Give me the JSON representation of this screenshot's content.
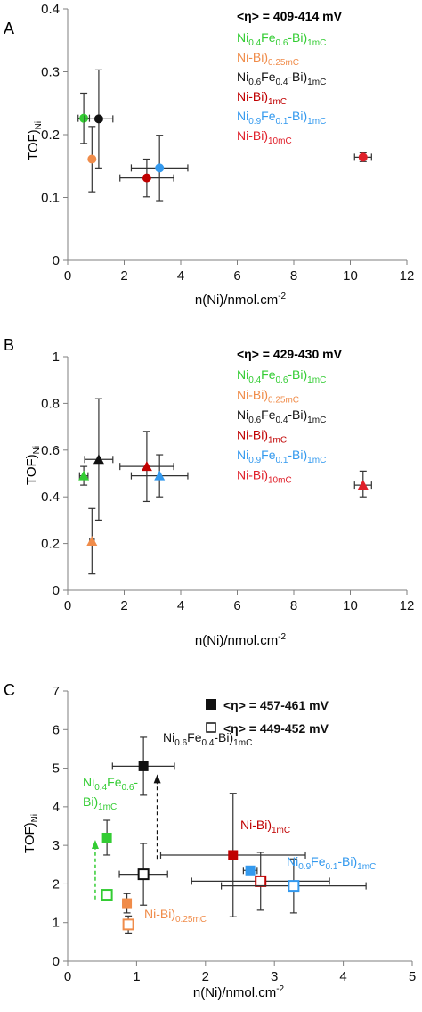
{
  "figure": {
    "panels": [
      {
        "letter": "A",
        "xlabel": "n(Ni)/nmol.cm",
        "xlabel_sup": "-2",
        "ylabel": "TOF)",
        "ylabel_sub": "Ni",
        "legend_title": "<η> = 409-414 mV",
        "legend_entries": [
          {
            "color": "#33cc33",
            "parts": [
              [
                "Ni",
                ""
              ],
              [
                "0.4",
                "sub"
              ],
              [
                "Fe",
                ""
              ],
              [
                "0.6",
                "sub"
              ],
              [
                "-Bi)",
                ""
              ],
              [
                "1mC",
                "sub"
              ]
            ]
          },
          {
            "color": "#f08c4a",
            "parts": [
              [
                "Ni-Bi)",
                ""
              ],
              [
                "0.25mC",
                "sub"
              ]
            ]
          },
          {
            "color": "#111111",
            "parts": [
              [
                "Ni",
                ""
              ],
              [
                "0.6",
                "sub"
              ],
              [
                "Fe",
                ""
              ],
              [
                "0.4",
                "sub"
              ],
              [
                "-Bi)",
                ""
              ],
              [
                "1mC",
                "sub"
              ]
            ]
          },
          {
            "color": "#c00000",
            "parts": [
              [
                "Ni-Bi)",
                ""
              ],
              [
                "1mC",
                "sub"
              ]
            ]
          },
          {
            "color": "#3399ee",
            "parts": [
              [
                "Ni",
                ""
              ],
              [
                "0.9",
                "sub"
              ],
              [
                "Fe",
                ""
              ],
              [
                "0.1",
                "sub"
              ],
              [
                "-Bi)",
                ""
              ],
              [
                "1mC",
                "sub"
              ]
            ]
          },
          {
            "color": "#e0202a",
            "parts": [
              [
                "Ni-Bi)",
                ""
              ],
              [
                "10mC",
                "sub"
              ]
            ]
          }
        ]
      },
      {
        "letter": "B",
        "xlabel": "n(Ni)/nmol.cm",
        "xlabel_sup": "-2",
        "ylabel": "TOF)",
        "ylabel_sub": "Ni",
        "legend_title": "<η> = 429-430 mV",
        "legend_entries": [
          {
            "color": "#33cc33",
            "parts": [
              [
                "Ni",
                ""
              ],
              [
                "0.4",
                "sub"
              ],
              [
                "Fe",
                ""
              ],
              [
                "0.6",
                "sub"
              ],
              [
                "-Bi)",
                ""
              ],
              [
                "1mC",
                "sub"
              ]
            ]
          },
          {
            "color": "#f08c4a",
            "parts": [
              [
                "Ni-Bi)",
                ""
              ],
              [
                "0.25mC",
                "sub"
              ]
            ]
          },
          {
            "color": "#111111",
            "parts": [
              [
                "Ni",
                ""
              ],
              [
                "0.6",
                "sub"
              ],
              [
                "Fe",
                ""
              ],
              [
                "0.4",
                "sub"
              ],
              [
                "-Bi)",
                ""
              ],
              [
                "1mC",
                "sub"
              ]
            ]
          },
          {
            "color": "#c00000",
            "parts": [
              [
                "Ni-Bi)",
                ""
              ],
              [
                "1mC",
                "sub"
              ]
            ]
          },
          {
            "color": "#3399ee",
            "parts": [
              [
                "Ni",
                ""
              ],
              [
                "0.9",
                "sub"
              ],
              [
                "Fe",
                ""
              ],
              [
                "0.1",
                "sub"
              ],
              [
                "-Bi)",
                ""
              ],
              [
                "1mC",
                "sub"
              ]
            ]
          },
          {
            "color": "#e0202a",
            "parts": [
              [
                "Ni-Bi)",
                ""
              ],
              [
                "10mC",
                "sub"
              ]
            ]
          }
        ]
      },
      {
        "letter": "C",
        "xlabel": "n(Ni)/nmol.cm",
        "xlabel_sup": "-2",
        "ylabel": "TOF)",
        "ylabel_sub": "Ni",
        "legend_entries": [
          {
            "marker": "filled-square",
            "text": "<η> = 457-461 mV"
          },
          {
            "marker": "open-square",
            "text": "<η> = 449-452 mV"
          }
        ],
        "annotations": [
          {
            "color": "#111111",
            "parts": [
              [
                "Ni",
                ""
              ],
              [
                "0.6",
                "sub"
              ],
              [
                "Fe",
                ""
              ],
              [
                "0.4",
                "sub"
              ],
              [
                "-Bi)",
                ""
              ],
              [
                "1mC",
                "sub"
              ]
            ]
          },
          {
            "color": "#33cc33",
            "parts": [
              [
                "Ni",
                ""
              ],
              [
                "0.4",
                "sub"
              ],
              [
                "Fe",
                ""
              ],
              [
                "0.6",
                "sub"
              ],
              [
                "-",
                ""
              ]
            ]
          },
          {
            "color": "#33cc33",
            "parts": [
              [
                "Bi)",
                ""
              ],
              [
                "1mC",
                "sub"
              ]
            ]
          },
          {
            "color": "#c00000",
            "parts": [
              [
                "Ni-Bi)",
                ""
              ],
              [
                "1mC",
                "sub"
              ]
            ]
          },
          {
            "color": "#3399ee",
            "parts": [
              [
                "Ni",
                ""
              ],
              [
                "0.9",
                "sub"
              ],
              [
                "Fe",
                ""
              ],
              [
                "0.1",
                "sub"
              ],
              [
                "-Bi)",
                ""
              ],
              [
                "1mC",
                "sub"
              ]
            ]
          },
          {
            "color": "#f08c4a",
            "parts": [
              [
                "Ni-Bi)",
                ""
              ],
              [
                "0.25mC",
                "sub"
              ]
            ]
          }
        ]
      }
    ]
  },
  "chart_data": [
    {
      "type": "scatter",
      "panel": "A",
      "marker": "circle",
      "xlim": [
        0,
        12
      ],
      "xticks": [
        0,
        2,
        4,
        6,
        8,
        10,
        12
      ],
      "ylim": [
        0,
        0.4
      ],
      "yticks": [
        "0",
        "0.1",
        "0.2",
        "0.3",
        "0.4"
      ],
      "grid": false,
      "points": [
        {
          "x": 0.57,
          "y": 0.226,
          "xerr": 0.2,
          "yerr_low": 0.04,
          "yerr_high": 0.04,
          "color": "#33cc33"
        },
        {
          "x": 0.86,
          "y": 0.161,
          "xerr": 0.08,
          "yerr_low": 0.052,
          "yerr_high": 0.052,
          "color": "#f08c4a"
        },
        {
          "x": 1.1,
          "y": 0.225,
          "xerr": 0.5,
          "yerr_low": 0.078,
          "yerr_high": 0.078,
          "color": "#111111"
        },
        {
          "x": 2.8,
          "y": 0.131,
          "xerr": 0.95,
          "yerr_low": 0.03,
          "yerr_high": 0.03,
          "color": "#c00000"
        },
        {
          "x": 3.25,
          "y": 0.147,
          "xerr": 1.0,
          "yerr_low": 0.052,
          "yerr_high": 0.052,
          "color": "#3399ee"
        },
        {
          "x": 10.45,
          "y": 0.164,
          "xerr": 0.3,
          "yerr_low": 0.007,
          "yerr_high": 0.007,
          "color": "#e0202a"
        }
      ]
    },
    {
      "type": "scatter",
      "panel": "B",
      "marker": "triangle",
      "xlim": [
        0,
        12
      ],
      "xticks": [
        0,
        2,
        4,
        6,
        8,
        10,
        12
      ],
      "ylim": [
        0,
        1
      ],
      "yticks": [
        "0",
        "0.2",
        "0.4",
        "0.6",
        "0.8",
        "1"
      ],
      "grid": false,
      "points": [
        {
          "x": 0.57,
          "y": 0.49,
          "xerr": 0.15,
          "yerr_low": 0.04,
          "yerr_high": 0.04,
          "color": "#33cc33"
        },
        {
          "x": 0.86,
          "y": 0.21,
          "xerr": 0.08,
          "yerr_low": 0.14,
          "yerr_high": 0.14,
          "color": "#f08c4a"
        },
        {
          "x": 1.1,
          "y": 0.56,
          "xerr": 0.5,
          "yerr_low": 0.26,
          "yerr_high": 0.26,
          "color": "#111111"
        },
        {
          "x": 2.8,
          "y": 0.53,
          "xerr": 0.95,
          "yerr_low": 0.15,
          "yerr_high": 0.15,
          "color": "#c00000"
        },
        {
          "x": 3.25,
          "y": 0.49,
          "xerr": 1.0,
          "yerr_low": 0.09,
          "yerr_high": 0.09,
          "color": "#3399ee"
        },
        {
          "x": 10.45,
          "y": 0.45,
          "xerr": 0.3,
          "yerr_low": 0.05,
          "yerr_high": 0.06,
          "color": "#e0202a"
        }
      ]
    },
    {
      "type": "scatter",
      "panel": "C",
      "marker": "square",
      "xlim": [
        0,
        5
      ],
      "xticks": [
        0,
        1,
        2,
        3,
        4,
        5
      ],
      "ylim": [
        0,
        7
      ],
      "yticks": [
        0,
        1,
        2,
        3,
        4,
        5,
        6,
        7
      ],
      "grid": false,
      "series": [
        {
          "fill": "filled",
          "points": [
            {
              "x": 0.57,
              "y": 3.2,
              "xerr": 0.05,
              "yerr_low": 0.45,
              "yerr_high": 0.45,
              "color": "#33cc33"
            },
            {
              "x": 0.86,
              "y": 1.5,
              "xerr": 0.06,
              "yerr_low": 0.25,
              "yerr_high": 0.25,
              "color": "#f08c4a"
            },
            {
              "x": 1.1,
              "y": 5.05,
              "xerr": 0.45,
              "yerr_low": 0.75,
              "yerr_high": 0.75,
              "color": "#111111"
            },
            {
              "x": 2.4,
              "y": 2.75,
              "xerr": 1.05,
              "yerr_low": 1.6,
              "yerr_high": 1.6,
              "color": "#c00000"
            },
            {
              "x": 2.65,
              "y": 2.35,
              "xerr": 0.1,
              "yerr_low": 0.1,
              "yerr_high": 0.1,
              "color": "#3399ee"
            }
          ]
        },
        {
          "fill": "open",
          "points": [
            {
              "x": 0.57,
              "y": 1.72,
              "xerr": 0,
              "yerr_low": 0,
              "yerr_high": 0,
              "color": "#33cc33"
            },
            {
              "x": 0.88,
              "y": 0.95,
              "xerr": 0.06,
              "yerr_low": 0.22,
              "yerr_high": 0.22,
              "color": "#f08c4a"
            },
            {
              "x": 1.1,
              "y": 2.25,
              "xerr": 0.35,
              "yerr_low": 0.8,
              "yerr_high": 0.8,
              "color": "#111111"
            },
            {
              "x": 2.8,
              "y": 2.07,
              "xerr": 1.0,
              "yerr_low": 0.75,
              "yerr_high": 0.75,
              "color": "#c00000"
            },
            {
              "x": 3.28,
              "y": 1.95,
              "xerr": 1.05,
              "yerr_low": 0.7,
              "yerr_high": 0.7,
              "color": "#3399ee"
            }
          ]
        }
      ],
      "arrows": [
        {
          "x": 0.4,
          "from_y": 1.6,
          "to_y": 3.05,
          "color": "#33cc33",
          "style": "dashed"
        },
        {
          "x": 1.3,
          "from_y": 2.65,
          "to_y": 4.75,
          "color": "#111111",
          "style": "dashed"
        }
      ]
    }
  ]
}
